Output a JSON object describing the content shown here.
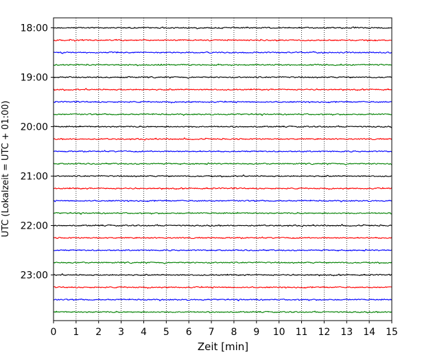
{
  "chart_data": {
    "type": "line",
    "title": "",
    "xlabel": "Zeit  [min]",
    "ylabel": "UTC (Lokalzeit = UTC + 01:00)",
    "xlim": [
      0,
      15
    ],
    "x_ticks": [
      "0",
      "1",
      "2",
      "3",
      "4",
      "5",
      "6",
      "7",
      "8",
      "9",
      "10",
      "11",
      "12",
      "13",
      "14",
      "15"
    ],
    "y_ticks": [
      "18:00",
      "19:00",
      "20:00",
      "21:00",
      "22:00",
      "23:00"
    ],
    "grid": {
      "vertical": true,
      "style": "dotted"
    },
    "trace_interval_minutes": 15,
    "trace_start": "18:00",
    "trace_count": 24,
    "colors": [
      "#000000",
      "#ff0000",
      "#0000ff",
      "#008000"
    ],
    "series": [
      {
        "start": "18:00"
      },
      {
        "start": "18:15"
      },
      {
        "start": "18:30"
      },
      {
        "start": "18:45"
      },
      {
        "start": "19:00"
      },
      {
        "start": "19:15"
      },
      {
        "start": "19:30"
      },
      {
        "start": "19:45"
      },
      {
        "start": "20:00"
      },
      {
        "start": "20:15"
      },
      {
        "start": "20:30"
      },
      {
        "start": "20:45"
      },
      {
        "start": "21:00"
      },
      {
        "start": "21:15"
      },
      {
        "start": "21:30"
      },
      {
        "start": "21:45"
      },
      {
        "start": "22:00"
      },
      {
        "start": "22:15"
      },
      {
        "start": "22:30"
      },
      {
        "start": "22:45"
      },
      {
        "start": "23:00"
      },
      {
        "start": "23:15"
      },
      {
        "start": "23:30"
      },
      {
        "start": "23:45"
      }
    ]
  }
}
